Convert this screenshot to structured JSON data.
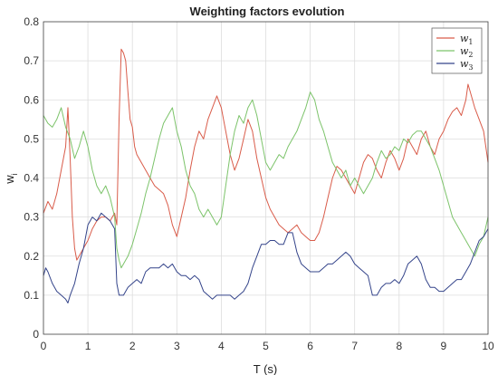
{
  "chart_data": {
    "type": "line",
    "title": "Weighting factors evolution",
    "xlabel": "T (s)",
    "ylabel": "w",
    "ylabel_sub": "i",
    "xlim": [
      0,
      10
    ],
    "ylim": [
      0,
      0.8
    ],
    "xticks": [
      "0",
      "1",
      "2",
      "3",
      "4",
      "5",
      "6",
      "7",
      "8",
      "9",
      "10"
    ],
    "yticks": [
      "0",
      "0.1",
      "0.2",
      "0.3",
      "0.4",
      "0.5",
      "0.6",
      "0.7",
      "0.8"
    ],
    "grid": true,
    "legend_position": "top-right",
    "series": [
      {
        "name": "w",
        "name_sub": "1",
        "color": "#d95c4a",
        "points": [
          [
            0,
            0.31
          ],
          [
            0.1,
            0.34
          ],
          [
            0.2,
            0.32
          ],
          [
            0.3,
            0.36
          ],
          [
            0.4,
            0.42
          ],
          [
            0.5,
            0.48
          ],
          [
            0.55,
            0.58
          ],
          [
            0.6,
            0.45
          ],
          [
            0.65,
            0.3
          ],
          [
            0.7,
            0.22
          ],
          [
            0.75,
            0.19
          ],
          [
            0.8,
            0.2
          ],
          [
            0.9,
            0.22
          ],
          [
            1.0,
            0.24
          ],
          [
            1.1,
            0.27
          ],
          [
            1.2,
            0.29
          ],
          [
            1.3,
            0.3
          ],
          [
            1.4,
            0.3
          ],
          [
            1.5,
            0.29
          ],
          [
            1.6,
            0.31
          ],
          [
            1.65,
            0.28
          ],
          [
            1.7,
            0.55
          ],
          [
            1.75,
            0.73
          ],
          [
            1.8,
            0.72
          ],
          [
            1.85,
            0.7
          ],
          [
            1.9,
            0.62
          ],
          [
            1.95,
            0.55
          ],
          [
            2.0,
            0.53
          ],
          [
            2.05,
            0.48
          ],
          [
            2.1,
            0.46
          ],
          [
            2.2,
            0.44
          ],
          [
            2.3,
            0.42
          ],
          [
            2.4,
            0.4
          ],
          [
            2.5,
            0.38
          ],
          [
            2.6,
            0.37
          ],
          [
            2.7,
            0.36
          ],
          [
            2.8,
            0.33
          ],
          [
            2.9,
            0.28
          ],
          [
            3.0,
            0.25
          ],
          [
            3.1,
            0.3
          ],
          [
            3.2,
            0.35
          ],
          [
            3.3,
            0.42
          ],
          [
            3.4,
            0.48
          ],
          [
            3.5,
            0.52
          ],
          [
            3.6,
            0.5
          ],
          [
            3.7,
            0.55
          ],
          [
            3.8,
            0.58
          ],
          [
            3.9,
            0.61
          ],
          [
            4.0,
            0.58
          ],
          [
            4.1,
            0.52
          ],
          [
            4.2,
            0.46
          ],
          [
            4.3,
            0.42
          ],
          [
            4.4,
            0.45
          ],
          [
            4.5,
            0.5
          ],
          [
            4.6,
            0.55
          ],
          [
            4.7,
            0.52
          ],
          [
            4.8,
            0.45
          ],
          [
            4.9,
            0.4
          ],
          [
            5.0,
            0.35
          ],
          [
            5.1,
            0.32
          ],
          [
            5.2,
            0.3
          ],
          [
            5.3,
            0.28
          ],
          [
            5.4,
            0.27
          ],
          [
            5.5,
            0.26
          ],
          [
            5.6,
            0.27
          ],
          [
            5.7,
            0.28
          ],
          [
            5.8,
            0.26
          ],
          [
            5.9,
            0.25
          ],
          [
            6.0,
            0.24
          ],
          [
            6.1,
            0.24
          ],
          [
            6.2,
            0.26
          ],
          [
            6.3,
            0.3
          ],
          [
            6.4,
            0.35
          ],
          [
            6.5,
            0.4
          ],
          [
            6.6,
            0.43
          ],
          [
            6.7,
            0.42
          ],
          [
            6.8,
            0.4
          ],
          [
            6.9,
            0.38
          ],
          [
            7.0,
            0.36
          ],
          [
            7.1,
            0.4
          ],
          [
            7.2,
            0.44
          ],
          [
            7.3,
            0.46
          ],
          [
            7.4,
            0.45
          ],
          [
            7.5,
            0.42
          ],
          [
            7.6,
            0.4
          ],
          [
            7.7,
            0.44
          ],
          [
            7.8,
            0.47
          ],
          [
            7.9,
            0.45
          ],
          [
            8.0,
            0.42
          ],
          [
            8.1,
            0.45
          ],
          [
            8.2,
            0.5
          ],
          [
            8.3,
            0.48
          ],
          [
            8.4,
            0.46
          ],
          [
            8.5,
            0.5
          ],
          [
            8.6,
            0.52
          ],
          [
            8.7,
            0.48
          ],
          [
            8.8,
            0.46
          ],
          [
            8.9,
            0.5
          ],
          [
            9.0,
            0.52
          ],
          [
            9.1,
            0.55
          ],
          [
            9.2,
            0.57
          ],
          [
            9.3,
            0.58
          ],
          [
            9.4,
            0.56
          ],
          [
            9.5,
            0.6
          ],
          [
            9.55,
            0.64
          ],
          [
            9.6,
            0.62
          ],
          [
            9.7,
            0.58
          ],
          [
            9.8,
            0.55
          ],
          [
            9.9,
            0.52
          ],
          [
            10.0,
            0.44
          ]
        ]
      },
      {
        "name": "w",
        "name_sub": "2",
        "color": "#7cc36a",
        "points": [
          [
            0,
            0.56
          ],
          [
            0.1,
            0.54
          ],
          [
            0.2,
            0.53
          ],
          [
            0.3,
            0.55
          ],
          [
            0.4,
            0.58
          ],
          [
            0.5,
            0.53
          ],
          [
            0.6,
            0.5
          ],
          [
            0.7,
            0.45
          ],
          [
            0.8,
            0.48
          ],
          [
            0.9,
            0.52
          ],
          [
            1.0,
            0.48
          ],
          [
            1.1,
            0.42
          ],
          [
            1.2,
            0.38
          ],
          [
            1.3,
            0.36
          ],
          [
            1.4,
            0.38
          ],
          [
            1.5,
            0.35
          ],
          [
            1.6,
            0.3
          ],
          [
            1.65,
            0.22
          ],
          [
            1.7,
            0.19
          ],
          [
            1.75,
            0.17
          ],
          [
            1.8,
            0.18
          ],
          [
            1.9,
            0.2
          ],
          [
            2.0,
            0.23
          ],
          [
            2.1,
            0.27
          ],
          [
            2.2,
            0.31
          ],
          [
            2.3,
            0.36
          ],
          [
            2.4,
            0.4
          ],
          [
            2.5,
            0.45
          ],
          [
            2.6,
            0.5
          ],
          [
            2.7,
            0.54
          ],
          [
            2.8,
            0.56
          ],
          [
            2.9,
            0.58
          ],
          [
            3.0,
            0.52
          ],
          [
            3.1,
            0.48
          ],
          [
            3.2,
            0.42
          ],
          [
            3.3,
            0.38
          ],
          [
            3.4,
            0.36
          ],
          [
            3.5,
            0.32
          ],
          [
            3.6,
            0.3
          ],
          [
            3.7,
            0.32
          ],
          [
            3.8,
            0.3
          ],
          [
            3.9,
            0.28
          ],
          [
            4.0,
            0.3
          ],
          [
            4.1,
            0.38
          ],
          [
            4.2,
            0.46
          ],
          [
            4.3,
            0.52
          ],
          [
            4.4,
            0.56
          ],
          [
            4.5,
            0.54
          ],
          [
            4.6,
            0.58
          ],
          [
            4.7,
            0.6
          ],
          [
            4.8,
            0.56
          ],
          [
            4.9,
            0.5
          ],
          [
            5.0,
            0.44
          ],
          [
            5.1,
            0.42
          ],
          [
            5.2,
            0.44
          ],
          [
            5.3,
            0.46
          ],
          [
            5.4,
            0.45
          ],
          [
            5.5,
            0.48
          ],
          [
            5.6,
            0.5
          ],
          [
            5.7,
            0.52
          ],
          [
            5.8,
            0.55
          ],
          [
            5.9,
            0.58
          ],
          [
            6.0,
            0.62
          ],
          [
            6.1,
            0.6
          ],
          [
            6.2,
            0.55
          ],
          [
            6.3,
            0.52
          ],
          [
            6.4,
            0.48
          ],
          [
            6.5,
            0.44
          ],
          [
            6.6,
            0.42
          ],
          [
            6.7,
            0.4
          ],
          [
            6.8,
            0.42
          ],
          [
            6.9,
            0.38
          ],
          [
            7.0,
            0.4
          ],
          [
            7.1,
            0.38
          ],
          [
            7.2,
            0.36
          ],
          [
            7.3,
            0.38
          ],
          [
            7.4,
            0.4
          ],
          [
            7.5,
            0.44
          ],
          [
            7.6,
            0.47
          ],
          [
            7.7,
            0.45
          ],
          [
            7.8,
            0.46
          ],
          [
            7.9,
            0.48
          ],
          [
            8.0,
            0.47
          ],
          [
            8.1,
            0.5
          ],
          [
            8.2,
            0.49
          ],
          [
            8.3,
            0.51
          ],
          [
            8.4,
            0.52
          ],
          [
            8.5,
            0.52
          ],
          [
            8.6,
            0.5
          ],
          [
            8.7,
            0.48
          ],
          [
            8.8,
            0.45
          ],
          [
            8.9,
            0.42
          ],
          [
            9.0,
            0.38
          ],
          [
            9.1,
            0.34
          ],
          [
            9.2,
            0.3
          ],
          [
            9.3,
            0.28
          ],
          [
            9.4,
            0.26
          ],
          [
            9.5,
            0.24
          ],
          [
            9.6,
            0.22
          ],
          [
            9.7,
            0.2
          ],
          [
            9.8,
            0.23
          ],
          [
            9.9,
            0.25
          ],
          [
            10.0,
            0.3
          ]
        ]
      },
      {
        "name": "w",
        "name_sub": "3",
        "color": "#34448a",
        "points": [
          [
            0,
            0.15
          ],
          [
            0.05,
            0.17
          ],
          [
            0.1,
            0.16
          ],
          [
            0.2,
            0.13
          ],
          [
            0.3,
            0.11
          ],
          [
            0.4,
            0.1
          ],
          [
            0.5,
            0.09
          ],
          [
            0.55,
            0.08
          ],
          [
            0.6,
            0.1
          ],
          [
            0.7,
            0.13
          ],
          [
            0.8,
            0.18
          ],
          [
            0.9,
            0.22
          ],
          [
            1.0,
            0.28
          ],
          [
            1.1,
            0.3
          ],
          [
            1.2,
            0.29
          ],
          [
            1.3,
            0.31
          ],
          [
            1.4,
            0.3
          ],
          [
            1.5,
            0.29
          ],
          [
            1.6,
            0.27
          ],
          [
            1.65,
            0.13
          ],
          [
            1.7,
            0.1
          ],
          [
            1.8,
            0.1
          ],
          [
            1.9,
            0.12
          ],
          [
            2.0,
            0.13
          ],
          [
            2.1,
            0.14
          ],
          [
            2.2,
            0.13
          ],
          [
            2.3,
            0.16
          ],
          [
            2.4,
            0.17
          ],
          [
            2.5,
            0.17
          ],
          [
            2.6,
            0.17
          ],
          [
            2.7,
            0.18
          ],
          [
            2.8,
            0.17
          ],
          [
            2.9,
            0.18
          ],
          [
            3.0,
            0.16
          ],
          [
            3.1,
            0.15
          ],
          [
            3.2,
            0.15
          ],
          [
            3.3,
            0.14
          ],
          [
            3.4,
            0.15
          ],
          [
            3.5,
            0.14
          ],
          [
            3.6,
            0.11
          ],
          [
            3.7,
            0.1
          ],
          [
            3.8,
            0.09
          ],
          [
            3.9,
            0.1
          ],
          [
            4.0,
            0.1
          ],
          [
            4.1,
            0.1
          ],
          [
            4.2,
            0.1
          ],
          [
            4.3,
            0.09
          ],
          [
            4.4,
            0.1
          ],
          [
            4.5,
            0.11
          ],
          [
            4.6,
            0.13
          ],
          [
            4.7,
            0.17
          ],
          [
            4.8,
            0.2
          ],
          [
            4.9,
            0.23
          ],
          [
            5.0,
            0.23
          ],
          [
            5.1,
            0.24
          ],
          [
            5.2,
            0.24
          ],
          [
            5.3,
            0.23
          ],
          [
            5.4,
            0.23
          ],
          [
            5.5,
            0.26
          ],
          [
            5.6,
            0.26
          ],
          [
            5.7,
            0.21
          ],
          [
            5.8,
            0.18
          ],
          [
            5.9,
            0.17
          ],
          [
            6.0,
            0.16
          ],
          [
            6.1,
            0.16
          ],
          [
            6.2,
            0.16
          ],
          [
            6.3,
            0.17
          ],
          [
            6.4,
            0.18
          ],
          [
            6.5,
            0.18
          ],
          [
            6.6,
            0.19
          ],
          [
            6.7,
            0.2
          ],
          [
            6.8,
            0.21
          ],
          [
            6.9,
            0.2
          ],
          [
            7.0,
            0.18
          ],
          [
            7.1,
            0.17
          ],
          [
            7.2,
            0.16
          ],
          [
            7.3,
            0.15
          ],
          [
            7.4,
            0.1
          ],
          [
            7.5,
            0.1
          ],
          [
            7.6,
            0.12
          ],
          [
            7.7,
            0.13
          ],
          [
            7.8,
            0.13
          ],
          [
            7.9,
            0.14
          ],
          [
            8.0,
            0.13
          ],
          [
            8.1,
            0.15
          ],
          [
            8.2,
            0.18
          ],
          [
            8.3,
            0.19
          ],
          [
            8.4,
            0.2
          ],
          [
            8.5,
            0.18
          ],
          [
            8.6,
            0.14
          ],
          [
            8.7,
            0.12
          ],
          [
            8.8,
            0.12
          ],
          [
            8.9,
            0.11
          ],
          [
            9.0,
            0.11
          ],
          [
            9.1,
            0.12
          ],
          [
            9.2,
            0.13
          ],
          [
            9.3,
            0.14
          ],
          [
            9.4,
            0.14
          ],
          [
            9.5,
            0.16
          ],
          [
            9.6,
            0.18
          ],
          [
            9.7,
            0.21
          ],
          [
            9.8,
            0.24
          ],
          [
            9.9,
            0.25
          ],
          [
            10.0,
            0.27
          ]
        ]
      }
    ]
  }
}
